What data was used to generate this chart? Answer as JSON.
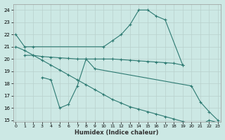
{
  "xlabel": "Humidex (Indice chaleur)",
  "bg_color": "#cce8e4",
  "grid_color": "#b8d0cc",
  "line_color": "#2d7a72",
  "xlim": [
    0,
    23
  ],
  "ylim": [
    15,
    24
  ],
  "xticks": [
    0,
    1,
    2,
    3,
    4,
    5,
    6,
    7,
    8,
    9,
    10,
    11,
    12,
    13,
    14,
    15,
    16,
    17,
    18,
    19,
    20,
    21,
    22,
    23
  ],
  "yticks": [
    15,
    16,
    17,
    18,
    19,
    20,
    21,
    22,
    23,
    24
  ],
  "series": [
    {
      "x": [
        0,
        1,
        2,
        10,
        11,
        12,
        13,
        14,
        15,
        16,
        17,
        19
      ],
      "y": [
        22,
        21,
        21,
        21,
        21.5,
        22,
        22.8,
        24,
        24,
        23.5,
        23.2,
        19.5
      ]
    },
    {
      "x": [
        1,
        2,
        3,
        4,
        5,
        6,
        7,
        8,
        9,
        10,
        11,
        12,
        13,
        14,
        15,
        16,
        17,
        18,
        19
      ],
      "y": [
        20.3,
        20.3,
        20.2,
        20.15,
        20.1,
        20.05,
        20.0,
        20.0,
        20.0,
        20.0,
        20.0,
        19.95,
        19.9,
        19.85,
        19.8,
        19.75,
        19.7,
        19.65,
        19.5
      ]
    },
    {
      "x": [
        3,
        4,
        5,
        6,
        7,
        8,
        9,
        20,
        21,
        22,
        23
      ],
      "y": [
        18.5,
        18.3,
        16.0,
        16.3,
        17.8,
        20.0,
        19.2,
        17.8,
        16.5,
        15.7,
        15.0
      ]
    },
    {
      "x": [
        0,
        1,
        2,
        3,
        4,
        5,
        6,
        7,
        8,
        9,
        10,
        11,
        12,
        13,
        14,
        15,
        16,
        17,
        18,
        19,
        20,
        21,
        22,
        23
      ],
      "y": [
        21,
        20.7,
        20.3,
        19.9,
        19.5,
        19.1,
        18.7,
        18.3,
        17.9,
        17.5,
        17.1,
        16.7,
        16.4,
        16.1,
        15.9,
        15.7,
        15.5,
        15.3,
        15.1,
        14.9,
        14.7,
        14.6,
        15.0,
        14.8
      ]
    }
  ]
}
